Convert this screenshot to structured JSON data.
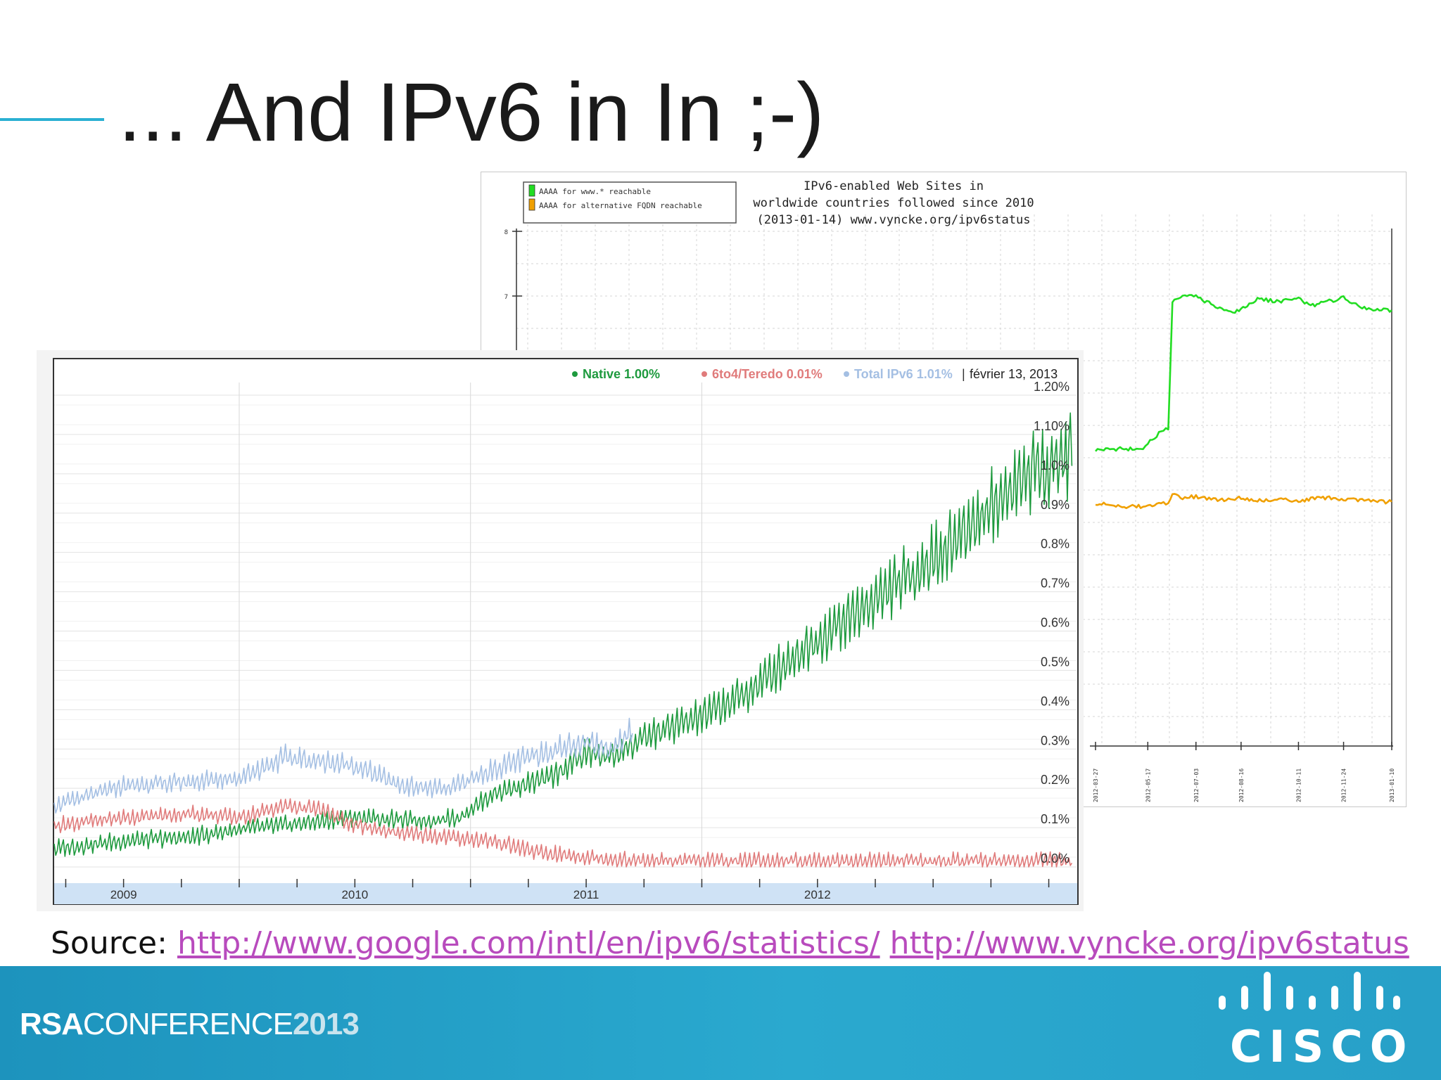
{
  "slide": {
    "title": "... And IPv6 in In ;-)",
    "source_label": "Source:",
    "source_link_1": "http://www.google.com/intl/en/ipv6/statistics/",
    "source_link_2": "http://www.vyncke.org/ipv6status",
    "footer_brand_rsa": "RSA",
    "footer_brand_conference": "CONFERENCE",
    "footer_brand_year": "2013",
    "footer_logo_text": "CISCO",
    "colors": {
      "accent": "#2ab0d2",
      "footer": "#27a0c8",
      "link": "#b84bbd"
    }
  },
  "chart_data": [
    {
      "type": "line",
      "title_lines": [
        "IPv6-enabled Web Sites in",
        "worldwide countries followed since 2010",
        "(2013-01-14) www.vyncke.org/ipv6status"
      ],
      "legend": [
        {
          "label": "AAAA for www.* reachable",
          "color": "#22dd22"
        },
        {
          "label": "AAAA for alternative FQDN reachable",
          "color": "#f0a000"
        }
      ],
      "y_ticks": [
        "8",
        "7"
      ],
      "x_ticks": [
        "2012-03-27",
        "2012-05-17",
        "2012-07-03",
        "2012-08-16",
        "2012-10-11",
        "2012-11-24",
        "2013-01-10"
      ],
      "series": [
        {
          "name": "AAAA for www.* reachable",
          "color": "#22dd22",
          "x": [
            "2012-03-27",
            "2012-04-20",
            "2012-05-10",
            "2012-05-17",
            "2012-05-30",
            "2012-06-06",
            "2012-06-10",
            "2012-06-20",
            "2012-07-03",
            "2012-07-20",
            "2012-08-10",
            "2012-08-16",
            "2012-09-01",
            "2012-09-20",
            "2012-10-11",
            "2012-10-25",
            "2012-11-10",
            "2012-11-24",
            "2012-12-10",
            "2012-12-25",
            "2013-01-10"
          ],
          "values": [
            4.62,
            4.64,
            4.63,
            4.72,
            4.9,
            4.95,
            6.9,
            7.0,
            7.0,
            6.85,
            6.75,
            6.8,
            6.95,
            6.92,
            6.95,
            6.85,
            6.92,
            6.98,
            6.82,
            6.8,
            6.78
          ]
        },
        {
          "name": "AAAA for alternative FQDN reachable",
          "color": "#f0a000",
          "x": [
            "2012-03-27",
            "2012-04-20",
            "2012-05-10",
            "2012-05-17",
            "2012-05-30",
            "2012-06-06",
            "2012-06-10",
            "2012-06-20",
            "2012-07-03",
            "2012-07-20",
            "2012-08-10",
            "2012-08-16",
            "2012-09-01",
            "2012-09-20",
            "2012-10-11",
            "2012-10-25",
            "2012-11-10",
            "2012-11-24",
            "2012-12-10",
            "2012-12-25",
            "2013-01-10"
          ],
          "values": [
            3.8,
            3.74,
            3.75,
            3.76,
            3.78,
            3.8,
            3.92,
            3.88,
            3.9,
            3.85,
            3.86,
            3.88,
            3.84,
            3.85,
            3.84,
            3.86,
            3.88,
            3.86,
            3.84,
            3.82,
            3.82
          ]
        }
      ]
    },
    {
      "type": "line",
      "legend": [
        {
          "label": "Native 1.00%",
          "color": "#1e9a3e"
        },
        {
          "label": "6to4/Teredo 0.01%",
          "color": "#e07b7b"
        },
        {
          "label": "Total IPv6 1.01%",
          "color": "#a4bfe3"
        }
      ],
      "date_label": "février 13, 2013",
      "legend_separator": "|",
      "ylim": [
        0,
        1.2
      ],
      "y_ticks": [
        "0.0%",
        "0.1%",
        "0.2%",
        "0.3%",
        "0.4%",
        "0.5%",
        "0.6%",
        "0.7%",
        "0.8%",
        "0.9%",
        "1.0%",
        "1.10%",
        "1.20%"
      ],
      "x_ticks": [
        "2009",
        "2010",
        "2011",
        "2012"
      ],
      "xlim": [
        2008.7,
        2013.12
      ],
      "series": [
        {
          "name": "Native",
          "color": "#1e9a3e",
          "x": [
            2008.7,
            2009.0,
            2009.3,
            2009.5,
            2009.7,
            2010.0,
            2010.3,
            2010.45,
            2010.6,
            2010.85,
            2011.0,
            2011.1,
            2011.3,
            2011.5,
            2011.7,
            2011.9,
            2012.1,
            2012.3,
            2012.5,
            2012.7,
            2012.9,
            2013.1
          ],
          "values": [
            0.04,
            0.06,
            0.07,
            0.09,
            0.1,
            0.12,
            0.11,
            0.12,
            0.18,
            0.22,
            0.28,
            0.27,
            0.33,
            0.37,
            0.43,
            0.52,
            0.6,
            0.68,
            0.76,
            0.86,
            0.97,
            1.02
          ]
        },
        {
          "name": "6to4/Teredo",
          "color": "#e07b7b",
          "x": [
            2008.7,
            2009.0,
            2009.3,
            2009.5,
            2009.7,
            2009.85,
            2010.0,
            2010.2,
            2010.4,
            2010.6,
            2010.8,
            2011.0,
            2011.2,
            2011.5,
            2011.8,
            2012.0,
            2012.3,
            2012.6,
            2012.9,
            2013.1
          ],
          "values": [
            0.1,
            0.12,
            0.13,
            0.12,
            0.15,
            0.14,
            0.1,
            0.08,
            0.07,
            0.06,
            0.03,
            0.02,
            0.01,
            0.01,
            0.01,
            0.01,
            0.01,
            0.01,
            0.01,
            0.01
          ]
        },
        {
          "name": "Total IPv6",
          "color": "#a4bfe3",
          "x": [
            2008.7,
            2009.0,
            2009.3,
            2009.5,
            2009.7,
            2009.85,
            2010.0,
            2010.2,
            2010.4,
            2010.6,
            2010.8,
            2011.0,
            2011.1,
            2011.2
          ],
          "values": [
            0.15,
            0.2,
            0.21,
            0.22,
            0.27,
            0.26,
            0.25,
            0.2,
            0.19,
            0.24,
            0.28,
            0.31,
            0.29,
            0.34
          ]
        }
      ]
    }
  ]
}
